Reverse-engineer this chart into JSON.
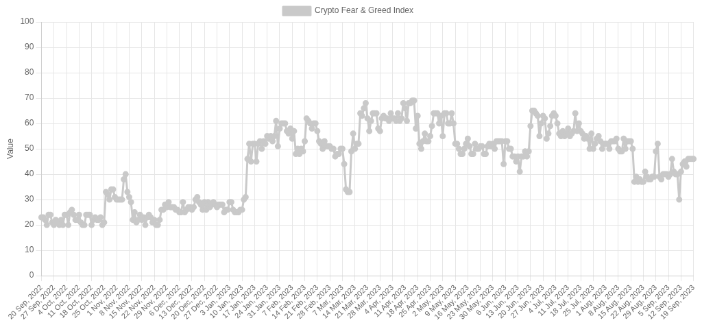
{
  "chart_data": {
    "type": "line",
    "ylabel": "Value",
    "legend": "top",
    "grid": true,
    "marker": "circle",
    "line_style": "solid",
    "ylim": [
      0,
      100
    ],
    "yticks": [
      0,
      10,
      20,
      30,
      40,
      50,
      60,
      70,
      80,
      90,
      100
    ],
    "categories": [
      "20 Sep, 2022",
      null,
      null,
      null,
      null,
      null,
      null,
      "27 Sep, 2022",
      null,
      null,
      null,
      null,
      null,
      null,
      "4 Oct, 2022",
      null,
      null,
      null,
      null,
      null,
      null,
      "11 Oct, 2022",
      null,
      null,
      null,
      null,
      null,
      null,
      "18 Oct, 2022",
      null,
      null,
      null,
      null,
      null,
      null,
      "25 Oct, 2022",
      null,
      null,
      null,
      null,
      null,
      null,
      "1 Nov, 2022",
      null,
      null,
      null,
      null,
      null,
      null,
      "8 Nov, 2022",
      null,
      null,
      null,
      null,
      null,
      null,
      "15 Nov, 2022",
      null,
      null,
      null,
      null,
      null,
      null,
      "22 Nov, 2022",
      null,
      null,
      null,
      null,
      null,
      null,
      "29 Nov, 2022",
      null,
      null,
      null,
      null,
      null,
      null,
      "6 Dec, 2022",
      null,
      null,
      null,
      null,
      null,
      null,
      "13 Dec, 2022",
      null,
      null,
      null,
      null,
      null,
      null,
      "20 Dec, 2022",
      null,
      null,
      null,
      null,
      null,
      null,
      "27 Dec, 2022",
      null,
      null,
      null,
      null,
      null,
      null,
      "3 Jan, 2023",
      null,
      null,
      null,
      null,
      null,
      null,
      "10 Jan, 2023",
      null,
      null,
      null,
      null,
      null,
      null,
      "17 Jan, 2023",
      null,
      null,
      null,
      null,
      null,
      null,
      "24 Jan, 2023",
      null,
      null,
      null,
      null,
      null,
      null,
      "31 Jan, 2023",
      null,
      null,
      null,
      null,
      null,
      null,
      "7 Feb, 2023",
      null,
      null,
      null,
      null,
      null,
      null,
      "14 Feb, 2023",
      null,
      null,
      null,
      null,
      null,
      null,
      "21 Feb, 2023",
      null,
      null,
      null,
      null,
      null,
      null,
      "28 Feb, 2023",
      null,
      null,
      null,
      null,
      null,
      null,
      "7 Mar, 2023",
      null,
      null,
      null,
      null,
      null,
      null,
      "14 Mar, 2023",
      null,
      null,
      null,
      null,
      null,
      null,
      "21 Mar, 2023",
      null,
      null,
      null,
      null,
      null,
      null,
      "28 Mar, 2023",
      null,
      null,
      null,
      null,
      null,
      null,
      "4 Apr, 2023",
      null,
      null,
      null,
      null,
      null,
      null,
      "11 Apr, 2023",
      null,
      null,
      null,
      null,
      null,
      null,
      "18 Apr, 2023",
      null,
      null,
      null,
      null,
      null,
      null,
      "25 Apr, 2023",
      null,
      null,
      null,
      null,
      null,
      null,
      "2 May, 2023",
      null,
      null,
      null,
      null,
      null,
      null,
      "9 May, 2023",
      null,
      null,
      null,
      null,
      null,
      null,
      "16 May, 2023",
      null,
      null,
      null,
      null,
      null,
      null,
      "23 May, 2023",
      null,
      null,
      null,
      null,
      null,
      null,
      "30 May, 2023",
      null,
      null,
      null,
      null,
      null,
      null,
      "6 Jun, 2023",
      null,
      null,
      null,
      null,
      null,
      null,
      "13 Jun, 2023",
      null,
      null,
      null,
      null,
      null,
      null,
      "20 Jun, 2023",
      null,
      null,
      null,
      null,
      null,
      null,
      "27 Jun, 2023",
      null,
      null,
      null,
      null,
      null,
      null,
      "4 Jul, 2023",
      null,
      null,
      null,
      null,
      null,
      null,
      "11 Jul, 2023",
      null,
      null,
      null,
      null,
      null,
      null,
      "18 Jul, 2023",
      null,
      null,
      null,
      null,
      null,
      null,
      "25 Jul, 2023",
      null,
      null,
      null,
      null,
      null,
      null,
      "1 Aug, 2023",
      null,
      null,
      null,
      null,
      null,
      null,
      "8 Aug, 2023",
      null,
      null,
      null,
      null,
      null,
      null,
      "15 Aug, 2023",
      null,
      null,
      null,
      null,
      null,
      null,
      "22 Aug, 2023",
      null,
      null,
      null,
      null,
      null,
      null,
      "29 Aug, 2023",
      null,
      null,
      null,
      null,
      null,
      null,
      "5 Sep, 2023",
      null,
      null,
      null,
      null,
      null,
      null,
      "12 Sep, 2023",
      null,
      null,
      null,
      null,
      null,
      null,
      "19 Sep, 2023"
    ],
    "series": [
      {
        "name": "Crypto Fear & Greed Index",
        "color": "#c9c9c9",
        "values": [
          23,
          23,
          22,
          20,
          24,
          24,
          21,
          20,
          22,
          21,
          20,
          22,
          20,
          24,
          24,
          20,
          25,
          26,
          24,
          22,
          22,
          24,
          21,
          20,
          20,
          24,
          24,
          24,
          20,
          22,
          23,
          22,
          22,
          23,
          20,
          21,
          33,
          32,
          30,
          34,
          34,
          31,
          30,
          30,
          30,
          30,
          38,
          40,
          33,
          31,
          29,
          22,
          25,
          21,
          22,
          24,
          22,
          23,
          20,
          23,
          24,
          23,
          21,
          22,
          20,
          20,
          22,
          26,
          26,
          28,
          27,
          29,
          27,
          27,
          27,
          26,
          26,
          25,
          25,
          29,
          25,
          26,
          27,
          27,
          26,
          27,
          30,
          31,
          29,
          28,
          26,
          29,
          26,
          29,
          27,
          28,
          29,
          28,
          27,
          28,
          28,
          28,
          25,
          26,
          26,
          29,
          29,
          26,
          25,
          25,
          25,
          26,
          26,
          30,
          31,
          46,
          52,
          45,
          52,
          52,
          45,
          52,
          53,
          50,
          53,
          52,
          55,
          54,
          55,
          53,
          55,
          61,
          51,
          58,
          60,
          60,
          60,
          57,
          56,
          58,
          54,
          57,
          48,
          50,
          48,
          50,
          49,
          53,
          62,
          61,
          60,
          58,
          60,
          60,
          57,
          53,
          52,
          50,
          53,
          51,
          51,
          51,
          50,
          50,
          47,
          48,
          48,
          50,
          50,
          44,
          34,
          33,
          33,
          49,
          56,
          50,
          52,
          52,
          64,
          63,
          66,
          68,
          62,
          57,
          61,
          64,
          64,
          64,
          58,
          57,
          62,
          63,
          62,
          62,
          61,
          64,
          62,
          62,
          61,
          64,
          61,
          62,
          68,
          66,
          61,
          68,
          68,
          69,
          69,
          58,
          63,
          52,
          50,
          53,
          56,
          53,
          53,
          55,
          59,
          64,
          64,
          64,
          60,
          63,
          55,
          64,
          64,
          60,
          60,
          64,
          60,
          52,
          52,
          50,
          48,
          48,
          50,
          52,
          54,
          51,
          48,
          48,
          52,
          50,
          50,
          51,
          51,
          48,
          48,
          51,
          52,
          51,
          52,
          50,
          53,
          53,
          53,
          53,
          44,
          53,
          53,
          50,
          50,
          47,
          47,
          45,
          47,
          41,
          47,
          47,
          49,
          47,
          49,
          59,
          65,
          65,
          64,
          63,
          55,
          60,
          63,
          62,
          54,
          56,
          59,
          63,
          64,
          63,
          60,
          56,
          55,
          57,
          55,
          56,
          58,
          55,
          56,
          57,
          64,
          57,
          60,
          57,
          56,
          54,
          55,
          54,
          50,
          56,
          50,
          52,
          54,
          55,
          53,
          50,
          52,
          52,
          52,
          50,
          53,
          53,
          53,
          54,
          50,
          49,
          49,
          54,
          50,
          53,
          53,
          53,
          50,
          37,
          39,
          37,
          38,
          37,
          37,
          41,
          39,
          38,
          38,
          39,
          39,
          49,
          52,
          39,
          38,
          40,
          40,
          40,
          39,
          40,
          46,
          41,
          40,
          40,
          30,
          41,
          44,
          45,
          43,
          46,
          46,
          46,
          46
        ]
      }
    ]
  }
}
